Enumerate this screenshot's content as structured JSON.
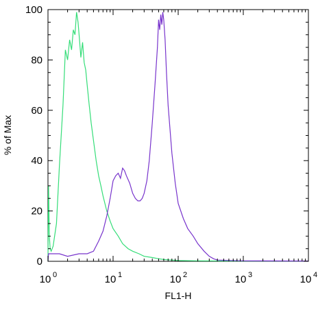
{
  "chart_data": {
    "type": "line",
    "xscale": "log",
    "xlabel": "FL1-H",
    "ylabel": "% of Max",
    "xlim": [
      1,
      10000
    ],
    "ylim": [
      0,
      100
    ],
    "grid": false,
    "y_ticks": [
      0,
      20,
      40,
      60,
      80,
      100
    ],
    "y_tick_labels": [
      "0",
      "20",
      "40",
      "60",
      "80",
      "100"
    ],
    "x_ticks": [
      {
        "value": 1,
        "base": "10",
        "exp": "0"
      },
      {
        "value": 10,
        "base": "10",
        "exp": "1"
      },
      {
        "value": 100,
        "base": "10",
        "exp": "2"
      },
      {
        "value": 1000,
        "base": "10",
        "exp": "3"
      },
      {
        "value": 10000,
        "base": "10",
        "exp": "4"
      }
    ],
    "series": [
      {
        "color": "#33dd77",
        "x": [
          1.0,
          1.02,
          1.05,
          1.08,
          1.12,
          1.2,
          1.35,
          1.5,
          1.7,
          1.85,
          2.0,
          2.15,
          2.3,
          2.45,
          2.6,
          2.75,
          2.9,
          3.05,
          3.2,
          3.4,
          3.6,
          3.8,
          4.0,
          4.3,
          4.6,
          5.0,
          5.5,
          6.0,
          6.5,
          7.0,
          8.0,
          9.0,
          10.0,
          12.0,
          14.0,
          17.0,
          20.0,
          25.0,
          30.0,
          40.0,
          50.0,
          60.0,
          80.0,
          100.0,
          200.0,
          1000.0,
          10000.0
        ],
        "y": [
          0,
          30,
          10,
          5,
          4,
          6,
          15,
          38,
          62,
          84,
          80,
          88,
          84,
          92,
          90,
          99,
          95,
          88,
          81,
          87,
          79,
          76,
          70,
          62,
          55,
          48,
          40,
          34,
          30,
          26,
          20,
          16,
          13,
          10,
          7,
          5,
          4,
          3,
          2,
          1.5,
          1,
          0.7,
          0.5,
          0.3,
          0.2,
          0.1,
          0.1
        ]
      },
      {
        "color": "#7733cc",
        "x": [
          1.0,
          1.02,
          1.5,
          2.0,
          3.0,
          4.0,
          5.0,
          6.0,
          7.0,
          8.0,
          9.0,
          10.0,
          11.0,
          12.0,
          13.0,
          14.0,
          15.0,
          16.0,
          18.0,
          20.0,
          22.0,
          24.0,
          26.0,
          28.0,
          30.0,
          33.0,
          36.0,
          40.0,
          44.0,
          48.0,
          50.0,
          52.0,
          54.0,
          56.0,
          58.0,
          60.0,
          63.0,
          66.0,
          70.0,
          80.0,
          90.0,
          100.0,
          120.0,
          140.0,
          170.0,
          200.0,
          250.0,
          300.0,
          350.0,
          400.0,
          1000.0,
          10000.0
        ],
        "y": [
          0,
          3,
          3,
          2,
          3,
          3,
          4,
          8,
          12,
          18,
          25,
          32,
          34,
          35,
          33,
          37,
          36,
          34,
          31,
          27,
          25,
          24,
          24,
          25,
          27,
          32,
          40,
          55,
          70,
          85,
          96,
          92,
          98,
          94,
          99,
          96,
          88,
          75,
          62,
          43,
          31,
          23,
          17,
          13,
          10,
          7,
          4,
          2,
          1,
          0.5,
          0.2,
          0.1
        ]
      }
    ]
  }
}
